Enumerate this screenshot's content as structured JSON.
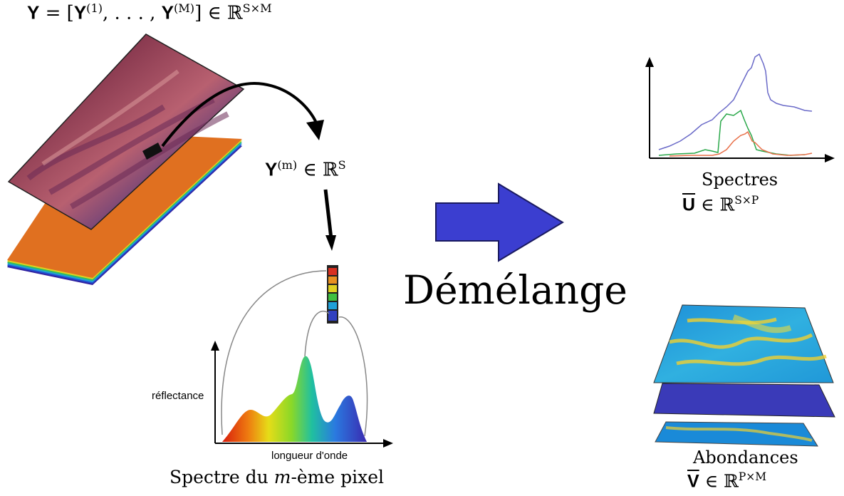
{
  "left": {
    "cube_formula": {
      "bold": "Y",
      "mid": " = [",
      "b1": "Y",
      "s1": "(1)",
      "mid2": ", . . . , ",
      "b2": "Y",
      "s2": "(M)",
      "mid3": "] ∈ ℝ",
      "s3": "S×M"
    },
    "pixel_formula": {
      "bold": "Y",
      "sup": "(m)",
      "rest": " ∈ ℝ",
      "sup2": "S"
    },
    "pixel_spectrum": {
      "ylabel": "réflectance",
      "xlabel": "longueur d'onde",
      "caption_pre": "Spectre du ",
      "caption_var": "m",
      "caption_post": "-ème pixel"
    }
  },
  "center": {
    "label": "Démélange",
    "arrow_color": "#3b3ed0"
  },
  "right": {
    "spectra": {
      "title": "Spectres",
      "bold": "U",
      "rest": " ∈ ℝ",
      "sup": "S×P"
    },
    "abundances": {
      "title": "Abondances",
      "bold": "V",
      "rest": " ∈ ℝ",
      "sup": "P×M"
    }
  },
  "colors": {
    "arrow": "#3b3ed0",
    "series_blue": "#6a6ac8",
    "series_green": "#2aa84a",
    "series_red": "#e8704a"
  }
}
